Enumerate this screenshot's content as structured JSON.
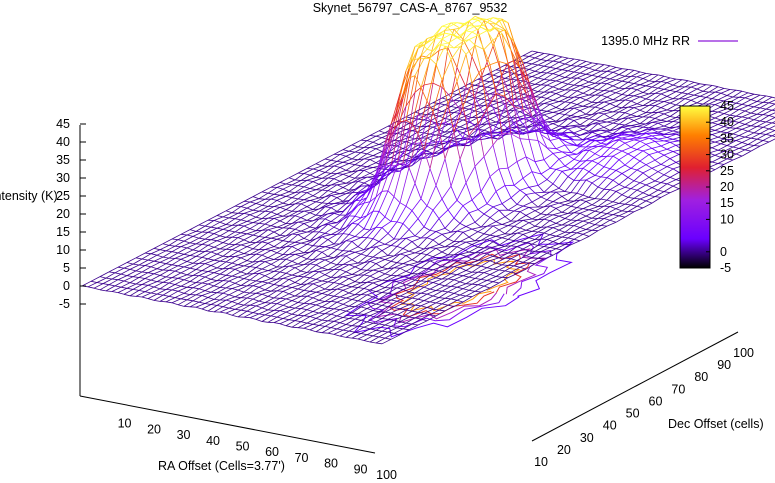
{
  "chart_data": {
    "type": "surface3d",
    "title": "Skynet_56797_CAS-A_8767_9532",
    "xlabel": "RA Offset (Cells=3.77')",
    "ylabel": "Dec Offset (cells)",
    "zlabel": "Intensity (K)",
    "legend": [
      {
        "name": "1395.0 MHz RR",
        "color": "#a040e0"
      }
    ],
    "legend_position": "top-right",
    "x_ticks": [
      10,
      20,
      30,
      40,
      50,
      60,
      70,
      80,
      90,
      100
    ],
    "y_ticks": [
      10,
      20,
      30,
      40,
      50,
      60,
      70,
      80,
      90,
      100
    ],
    "z_ticks": [
      -5,
      0,
      5,
      10,
      15,
      20,
      25,
      30,
      35,
      40,
      45
    ],
    "xlim": [
      0,
      100
    ],
    "ylim": [
      0,
      100
    ],
    "zlim": [
      -5,
      45
    ],
    "colorbar": {
      "ticks": [
        -5,
        0,
        10,
        15,
        20,
        25,
        30,
        35,
        40,
        45
      ],
      "range": [
        -5,
        45
      ],
      "palette": [
        "#000000",
        "#6a00ff",
        "#a020e0",
        "#e02030",
        "#ff8000",
        "#ffff40"
      ]
    },
    "peak": {
      "x": 48,
      "y": 52,
      "z": 45,
      "radius": 13
    },
    "baseline": 0,
    "contours_on_base": true,
    "grid": false
  }
}
